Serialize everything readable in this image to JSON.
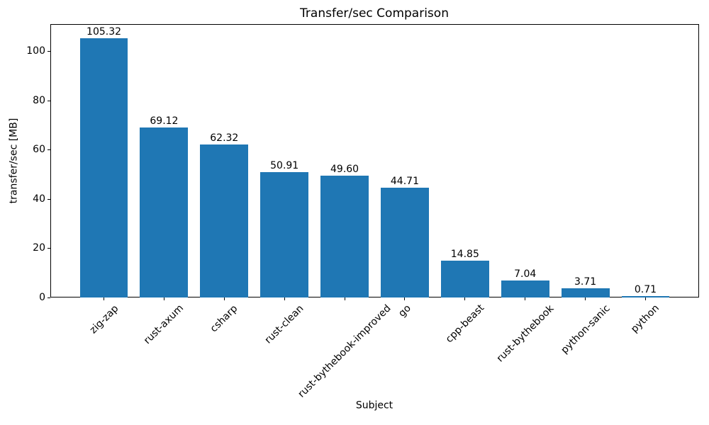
{
  "chart_data": {
    "type": "bar",
    "title": "Transfer/sec Comparison",
    "xlabel": "Subject",
    "ylabel": "transfer/sec [MB]",
    "categories": [
      "zig-zap",
      "rust-axum",
      "csharp",
      "rust-clean",
      "rust-bythebook-improved",
      "go",
      "cpp-beast",
      "rust-bythebook",
      "python-sanic",
      "python"
    ],
    "values": [
      105.32,
      69.12,
      62.32,
      50.91,
      49.6,
      44.71,
      14.85,
      7.04,
      3.71,
      0.71
    ],
    "value_labels": [
      "105.32",
      "69.12",
      "62.32",
      "50.91",
      "49.60",
      "44.71",
      "14.85",
      "7.04",
      "3.71",
      "0.71"
    ],
    "yticks": [
      0,
      20,
      40,
      60,
      80,
      100
    ],
    "ylim": [
      0,
      111.2
    ],
    "bar_color": "#1f77b4",
    "bar_width_fraction": 0.8,
    "x_tick_rotation": 45,
    "grid": false,
    "legend": "none"
  }
}
